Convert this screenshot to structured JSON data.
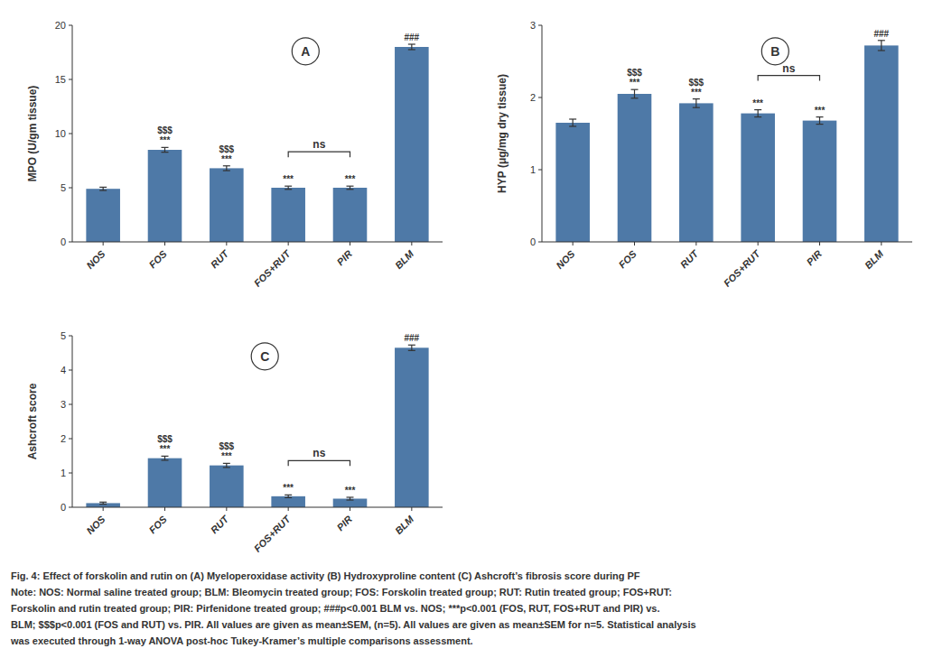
{
  "chart_data": [
    {
      "type": "bar",
      "title": "A",
      "categories": [
        "NOS",
        "FOS",
        "RUT",
        "FOS+RUT",
        "PIR",
        "BLM"
      ],
      "values": [
        4.9,
        8.5,
        6.8,
        5.0,
        5.0,
        18.0
      ],
      "errors": [
        0.15,
        0.22,
        0.22,
        0.15,
        0.15,
        0.25
      ],
      "ylim": [
        0,
        20
      ],
      "yticks": [
        0,
        5,
        10,
        15,
        20
      ],
      "y_label": "MPO (U/gm tissue)",
      "grid": false,
      "annotations": [
        {
          "x": "FOS",
          "text": "***"
        },
        {
          "x": "FOS",
          "text": "$$$"
        },
        {
          "x": "RUT",
          "text": "***"
        },
        {
          "x": "RUT",
          "text": "$$$"
        },
        {
          "x": "FOS+RUT",
          "text": "***"
        },
        {
          "x": "PIR",
          "text": "***"
        },
        {
          "x": "BLM",
          "text": "###"
        },
        {
          "x": [
            "FOS+RUT",
            "PIR"
          ],
          "text": "ns"
        }
      ]
    },
    {
      "type": "bar",
      "title": "B",
      "categories": [
        "NOS",
        "FOS",
        "RUT",
        "FOS+RUT",
        "PIR",
        "BLM"
      ],
      "values": [
        1.65,
        2.05,
        1.92,
        1.78,
        1.68,
        2.72
      ],
      "errors": [
        0.05,
        0.06,
        0.06,
        0.05,
        0.05,
        0.07
      ],
      "ylim": [
        0,
        3
      ],
      "yticks": [
        0,
        1,
        2,
        3
      ],
      "y_label": "HYP (μg/mg dry tissue)",
      "grid": false,
      "annotations": [
        {
          "x": "FOS",
          "text": "***"
        },
        {
          "x": "FOS",
          "text": "$$$"
        },
        {
          "x": "RUT",
          "text": "***"
        },
        {
          "x": "RUT",
          "text": "$$$"
        },
        {
          "x": "FOS+RUT",
          "text": "***"
        },
        {
          "x": "PIR",
          "text": "***"
        },
        {
          "x": "BLM",
          "text": "###"
        },
        {
          "x": [
            "FOS+RUT",
            "PIR"
          ],
          "text": "ns"
        }
      ]
    },
    {
      "type": "bar",
      "title": "C",
      "categories": [
        "NOS",
        "FOS",
        "RUT",
        "FOS+RUT",
        "PIR",
        "BLM"
      ],
      "values": [
        0.12,
        1.43,
        1.22,
        0.32,
        0.25,
        4.65
      ],
      "errors": [
        0.03,
        0.06,
        0.06,
        0.04,
        0.04,
        0.08
      ],
      "ylim": [
        0,
        5
      ],
      "yticks": [
        0,
        1,
        2,
        3,
        4,
        5
      ],
      "y_label": "Ashcroft score",
      "grid": false,
      "annotations": [
        {
          "x": "FOS",
          "text": "***"
        },
        {
          "x": "FOS",
          "text": "$$$"
        },
        {
          "x": "RUT",
          "text": "***"
        },
        {
          "x": "RUT",
          "text": "$$$"
        },
        {
          "x": "FOS+RUT",
          "text": "***"
        },
        {
          "x": "PIR",
          "text": "***"
        },
        {
          "x": "BLM",
          "text": "###"
        },
        {
          "x": [
            "FOS+RUT",
            "PIR"
          ],
          "text": "ns"
        }
      ]
    }
  ],
  "caption": [
    "Fig. 4: Effect of forskolin and rutin on (A) Myeloperoxidase activity (B) Hydroxyproline content (C) Ashcroft’s fibrosis score during PF",
    "Note: NOS: Normal saline treated group; BLM: Bleomycin treated group; FOS: Forskolin treated group; RUT: Rutin treated group; FOS+RUT:",
    "Forskolin and rutin treated group; PIR: Pirfenidone treated group; ⁠###p<0.001 BLM vs. NOS; ***p<0.001 (FOS, RUT, FOS+RUT and PIR) vs.",
    "BLM; $$$p<0.001 (FOS and RUT) vs. PIR. All values are given as mean±SEM, (n=5). All values are given as mean±SEM for n=5. Statistical analysis",
    "was executed through 1-way ANOVA post-hoc Tukey-Kramer’s multiple comparisons assessment."
  ]
}
